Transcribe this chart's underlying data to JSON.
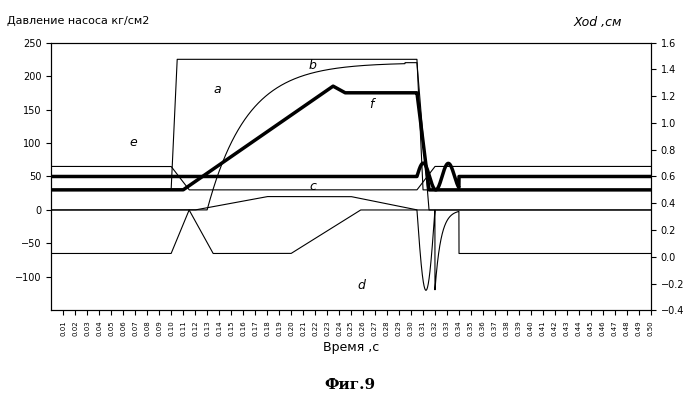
{
  "title_left": "Давление насоса кг/см2",
  "title_right": "Xod ,см",
  "xlabel": "Время ,с",
  "figure_title": "Фиг.9",
  "ylim_left": [
    -150,
    250
  ],
  "ylim_right": [
    -0.4,
    1.6
  ],
  "xlim": [
    0.0,
    0.5
  ],
  "yticks_left": [
    -100,
    -50,
    0,
    50,
    100,
    150,
    200,
    250
  ],
  "yticks_right": [
    -0.4,
    -0.2,
    0.0,
    0.2,
    0.4,
    0.6,
    0.8,
    1.0,
    1.2,
    1.4,
    1.6
  ],
  "bg_color": "#ffffff",
  "line_color": "#000000",
  "label_a": "a",
  "label_b": "b",
  "label_c": "c",
  "label_d": "d",
  "label_e": "e",
  "label_f": "f"
}
